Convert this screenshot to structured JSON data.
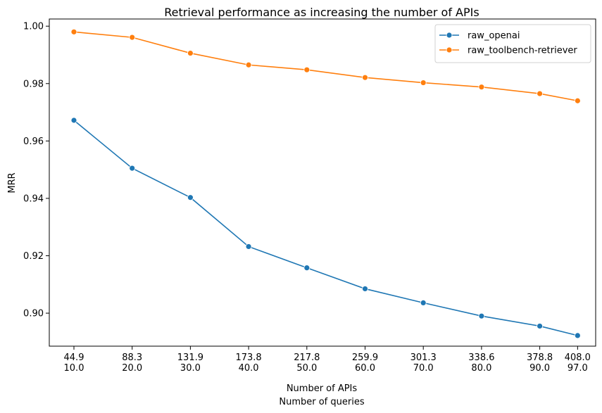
{
  "chart_data": {
    "type": "line",
    "title": "Retrieval performance as increasing the number of APIs",
    "xlabel": "Number of APIs",
    "xlabel2": "Number of queries",
    "ylabel": "MRR",
    "x_index": [
      0,
      1,
      2,
      3,
      4,
      5,
      6,
      7,
      8,
      9
    ],
    "x_tick_labels_apis": [
      "44.9",
      "88.3",
      "131.9",
      "173.8",
      "217.8",
      "259.9",
      "301.3",
      "338.6",
      "378.8",
      "408.0"
    ],
    "x_tick_labels_queries": [
      "10.0",
      "20.0",
      "30.0",
      "40.0",
      "50.0",
      "60.0",
      "70.0",
      "80.0",
      "90.0",
      "97.0"
    ],
    "x_positions": [
      0,
      1,
      2,
      3,
      4,
      5,
      6,
      7,
      8,
      8.65
    ],
    "y_ticks": [
      "0.90",
      "0.92",
      "0.94",
      "0.96",
      "0.98",
      "1.00"
    ],
    "y_tick_values": [
      0.9,
      0.92,
      0.94,
      0.96,
      0.98,
      1.0
    ],
    "ylim": [
      0.8885,
      1.0025
    ],
    "grid": false,
    "legend_position": "upper right",
    "series": [
      {
        "name": "raw_openai",
        "color": "#1f77b4",
        "values": [
          0.9672,
          0.9505,
          0.9403,
          0.9232,
          0.9158,
          0.9085,
          0.9036,
          0.899,
          0.8955,
          0.8922
        ]
      },
      {
        "name": "raw_toolbench-retriever",
        "color": "#ff7f0e",
        "values": [
          0.998,
          0.9961,
          0.9906,
          0.9865,
          0.9848,
          0.9821,
          0.9803,
          0.9788,
          0.9765,
          0.974
        ]
      }
    ]
  }
}
